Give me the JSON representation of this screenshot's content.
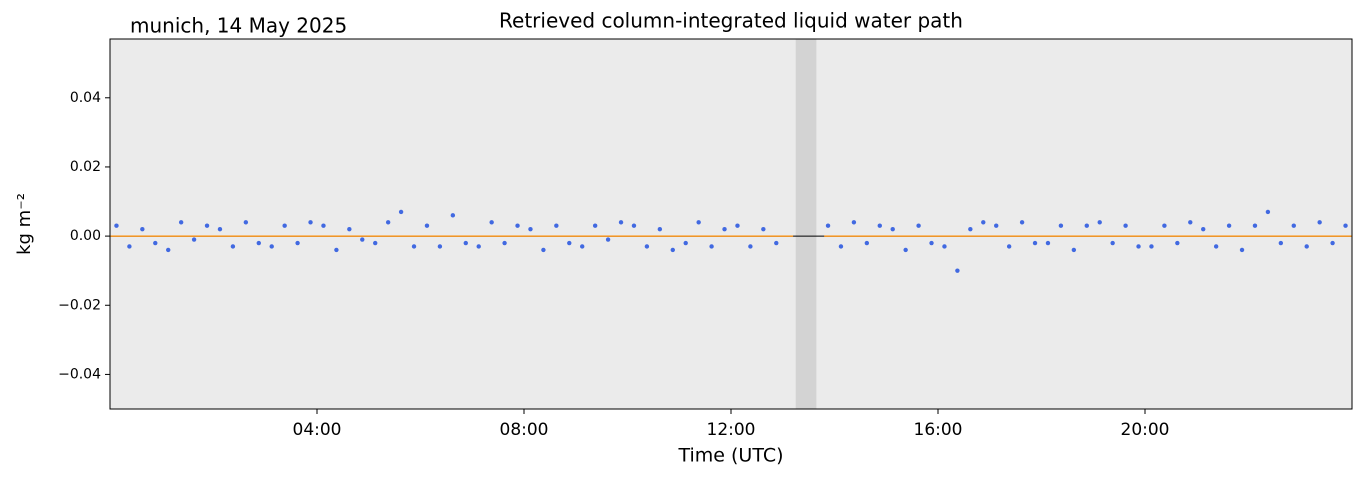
{
  "chart_data": {
    "type": "scatter",
    "title": "Retrieved column-integrated liquid water path",
    "corner_text": "munich, 14 May 2025",
    "x_label": "Time (UTC)",
    "y_label": "kg m⁻²",
    "xlim": [
      0,
      24
    ],
    "ylim": [
      -0.05,
      0.057
    ],
    "xticks": [
      {
        "value": 4,
        "label": "04:00"
      },
      {
        "value": 8,
        "label": "08:00"
      },
      {
        "value": 12,
        "label": "12:00"
      },
      {
        "value": 16,
        "label": "16:00"
      },
      {
        "value": 20,
        "label": "20:00"
      }
    ],
    "yticks": [
      {
        "value": -0.04,
        "label": "−0.04"
      },
      {
        "value": -0.02,
        "label": "−0.02"
      },
      {
        "value": 0,
        "label": "0.00"
      },
      {
        "value": 0.02,
        "label": "0.02"
      },
      {
        "value": 0.04,
        "label": "0.04"
      }
    ],
    "background": "#ebebeb",
    "shaded_span": [
      13.25,
      13.65
    ],
    "shaded_color": "#d3d3d3",
    "hline": 0,
    "series": [
      {
        "kind": "scatter",
        "color": "#4169e1",
        "x": [
          0.125,
          0.375,
          0.625,
          0.875,
          1.125,
          1.375,
          1.625,
          1.875,
          2.125,
          2.375,
          2.625,
          2.875,
          3.125,
          3.375,
          3.625,
          3.875,
          4.125,
          4.375,
          4.625,
          4.875,
          5.125,
          5.375,
          5.625,
          5.875,
          6.125,
          6.375,
          6.625,
          6.875,
          7.125,
          7.375,
          7.625,
          7.875,
          8.125,
          8.375,
          8.625,
          8.875,
          9.125,
          9.375,
          9.625,
          9.875,
          10.125,
          10.375,
          10.625,
          10.875,
          11.125,
          11.375,
          11.625,
          11.875,
          12.125,
          12.375,
          12.625,
          12.875,
          13.875,
          14.125,
          14.375,
          14.625,
          14.875,
          15.125,
          15.375,
          15.625,
          15.875,
          16.125,
          16.375,
          16.625,
          16.875,
          17.125,
          17.375,
          17.625,
          17.875,
          18.125,
          18.375,
          18.625,
          18.875,
          19.125,
          19.375,
          19.625,
          19.875,
          20.125,
          20.375,
          20.625,
          20.875,
          21.125,
          21.375,
          21.625,
          21.875,
          22.125,
          22.375,
          22.625,
          22.875,
          23.125,
          23.375,
          23.625,
          23.875
        ],
        "values": [
          0.003,
          -0.003,
          0.002,
          -0.002,
          -0.004,
          0.004,
          -0.001,
          0.003,
          0.002,
          -0.003,
          0.004,
          -0.002,
          -0.003,
          0.003,
          -0.002,
          0.004,
          0.003,
          -0.004,
          0.002,
          -0.001,
          -0.002,
          0.004,
          0.007,
          -0.003,
          0.003,
          -0.003,
          0.006,
          -0.002,
          -0.003,
          0.004,
          -0.002,
          0.003,
          0.002,
          -0.004,
          0.003,
          -0.002,
          -0.003,
          0.003,
          -0.001,
          0.004,
          0.003,
          -0.003,
          0.002,
          -0.004,
          -0.002,
          0.004,
          -0.003,
          0.002,
          0.003,
          -0.003,
          0.002,
          -0.002,
          0.003,
          -0.003,
          0.004,
          -0.002,
          0.003,
          0.002,
          -0.004,
          0.003,
          -0.002,
          -0.003,
          -0.01,
          0.002,
          0.004,
          0.003,
          -0.003,
          0.004,
          -0.002,
          -0.002,
          0.003,
          -0.004,
          0.003,
          0.004,
          -0.002,
          0.003,
          -0.003,
          -0.003,
          0.003,
          -0.002,
          0.004,
          0.002,
          -0.003,
          0.003,
          -0.004,
          0.003,
          0.007,
          -0.002,
          0.003,
          -0.003,
          0.004,
          -0.002,
          0.003
        ]
      },
      {
        "kind": "line",
        "color": "#ff8c00",
        "x": [
          0,
          6,
          12,
          13.2,
          13.5,
          13.8,
          18,
          24
        ],
        "values": [
          0,
          0,
          0,
          0,
          null,
          0,
          0,
          0
        ]
      }
    ]
  }
}
